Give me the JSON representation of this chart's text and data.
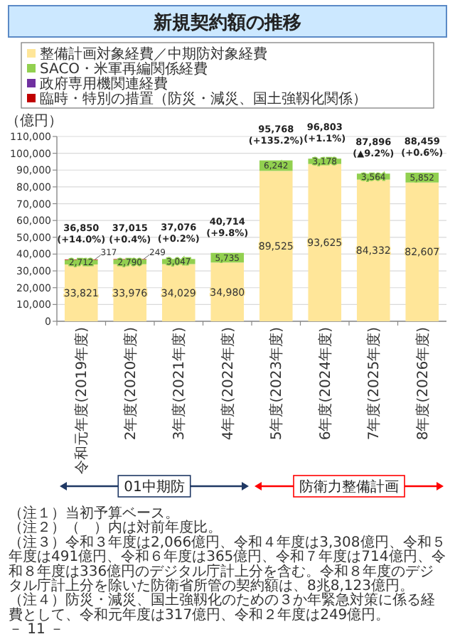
{
  "chart_data": {
    "type": "bar",
    "stacked": true,
    "title": "新規契約額の推移",
    "ylabel": "（億円）",
    "categories": [
      "令和元年度(2019年度)",
      "2年度(2020年度)",
      "3年度(2021年度)",
      "4年度(2022年度)",
      "5年度(2023年度)",
      "6年度(2024年度)",
      "7年度(2025年度)",
      "8年度(2026年度)"
    ],
    "series": [
      {
        "name": "整備計画対象経費／中期防対象経費",
        "color": "#ffe699",
        "values": [
          33821,
          33976,
          34029,
          34980,
          89525,
          93625,
          84332,
          82607
        ],
        "value_labels": [
          "33,821",
          "33,976",
          "34,029",
          "34,980",
          "89,525",
          "93,625",
          "84,332",
          "82,607"
        ]
      },
      {
        "name": "SACO・米軍再編関係経費",
        "color": "#92d050",
        "values": [
          2712,
          2790,
          3047,
          5735,
          6242,
          3178,
          3564,
          5852
        ],
        "value_labels": [
          "2,712",
          "2,790",
          "3,047",
          "5,735",
          "6,242",
          "3,178",
          "3,564",
          "5,852"
        ]
      },
      {
        "name": "政府専用機関連経費",
        "color": "#7030a0",
        "values": [
          null,
          null,
          null,
          null,
          null,
          null,
          null,
          null
        ]
      },
      {
        "name": "臨時・特別の措置（防災・減災、国土強靱化関係）",
        "color": "#c00000",
        "values": [
          317,
          249,
          null,
          null,
          null,
          null,
          null,
          null
        ],
        "value_labels": [
          "317",
          "249",
          null,
          null,
          null,
          null,
          null,
          null
        ]
      }
    ],
    "totals": [
      "36,850\n(+14.0%)",
      "37,015\n(+0.4%)",
      "37,076\n(+0.2%)",
      "40,714\n(+9.8%)",
      "95,768\n(+135.2%)",
      "96,803\n(+1.1%)",
      "87,896\n(▲9.2%)",
      "88,459\n(+0.6%)"
    ],
    "ylim": [
      0,
      110000
    ],
    "yticks": [
      {
        "value": 0,
        "label": "0"
      },
      {
        "value": 10000,
        "label": "10,000"
      },
      {
        "value": 20000,
        "label": "20,000"
      },
      {
        "value": 30000,
        "label": "30,000"
      },
      {
        "value": 40000,
        "label": "40,000"
      },
      {
        "value": 50000,
        "label": "50,000"
      },
      {
        "value": 60000,
        "label": "60,000"
      },
      {
        "value": 70000,
        "label": "70,000"
      },
      {
        "value": 80000,
        "label": "80,000"
      },
      {
        "value": 90000,
        "label": "90,000"
      },
      {
        "value": 100000,
        "label": "100,000"
      },
      {
        "value": 110000,
        "label": "110,000"
      }
    ],
    "grid": "y",
    "legend": "top",
    "annotations": [
      "01中期防",
      "防衛力整備計画",
      "（注１）当初予算ベース。",
      "（注２）（　）内は対前年度比。",
      "（注３）令和３年度は2,066億円、令和４年度は3,308億円、令和５年度は491億円、令和６年度は365億円、令和７年度は714億円、令和８年度は336億円のデジタル庁計上分を含む。令和８年度のデジタル庁計上分を除いた防衛省所管の契約額は、8兆8,123億円。",
      "（注４）防災・減災、国土強靱化のための３か年緊急対策に係る経費として、令和元年度は317億円、令和２年度は249億円。",
      "－ 11 －"
    ]
  }
}
